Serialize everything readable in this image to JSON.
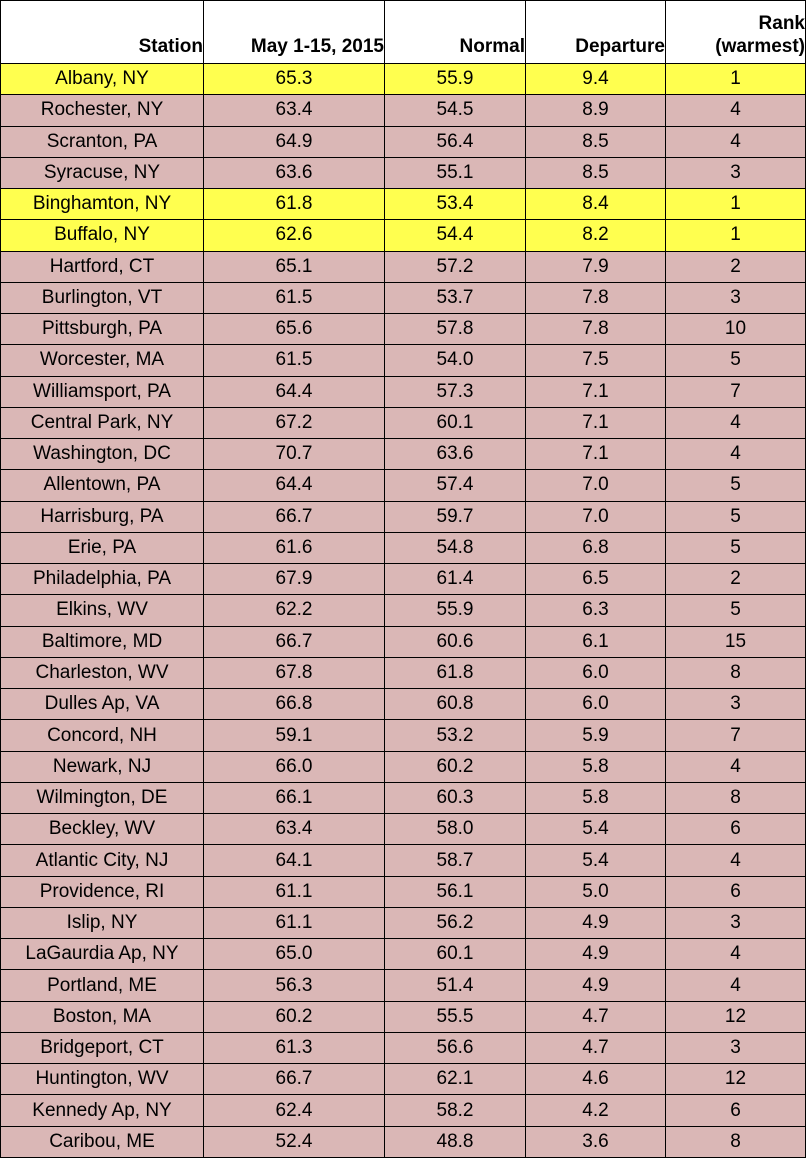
{
  "table": {
    "header": [
      "Station",
      "May 1-15, 2015",
      "Normal",
      "Departure",
      [
        "Rank",
        "(warmest)"
      ]
    ],
    "row_color": "#dab7b6",
    "highlight_color": "#ffff4f",
    "highlighted_rows": [
      0,
      4,
      5
    ],
    "rows": [
      [
        "Albany, NY",
        "65.3",
        "55.9",
        "9.4",
        "1"
      ],
      [
        "Rochester, NY",
        "63.4",
        "54.5",
        "8.9",
        "4"
      ],
      [
        "Scranton, PA",
        "64.9",
        "56.4",
        "8.5",
        "4"
      ],
      [
        "Syracuse, NY",
        "63.6",
        "55.1",
        "8.5",
        "3"
      ],
      [
        "Binghamton, NY",
        "61.8",
        "53.4",
        "8.4",
        "1"
      ],
      [
        "Buffalo, NY",
        "62.6",
        "54.4",
        "8.2",
        "1"
      ],
      [
        "Hartford, CT",
        "65.1",
        "57.2",
        "7.9",
        "2"
      ],
      [
        "Burlington, VT",
        "61.5",
        "53.7",
        "7.8",
        "3"
      ],
      [
        "Pittsburgh, PA",
        "65.6",
        "57.8",
        "7.8",
        "10"
      ],
      [
        "Worcester, MA",
        "61.5",
        "54.0",
        "7.5",
        "5"
      ],
      [
        "Williamsport, PA",
        "64.4",
        "57.3",
        "7.1",
        "7"
      ],
      [
        "Central Park, NY",
        "67.2",
        "60.1",
        "7.1",
        "4"
      ],
      [
        "Washington, DC",
        "70.7",
        "63.6",
        "7.1",
        "4"
      ],
      [
        "Allentown, PA",
        "64.4",
        "57.4",
        "7.0",
        "5"
      ],
      [
        "Harrisburg, PA",
        "66.7",
        "59.7",
        "7.0",
        "5"
      ],
      [
        "Erie, PA",
        "61.6",
        "54.8",
        "6.8",
        "5"
      ],
      [
        "Philadelphia, PA",
        "67.9",
        "61.4",
        "6.5",
        "2"
      ],
      [
        "Elkins, WV",
        "62.2",
        "55.9",
        "6.3",
        "5"
      ],
      [
        "Baltimore, MD",
        "66.7",
        "60.6",
        "6.1",
        "15"
      ],
      [
        "Charleston, WV",
        "67.8",
        "61.8",
        "6.0",
        "8"
      ],
      [
        "Dulles Ap, VA",
        "66.8",
        "60.8",
        "6.0",
        "3"
      ],
      [
        "Concord, NH",
        "59.1",
        "53.2",
        "5.9",
        "7"
      ],
      [
        "Newark, NJ",
        "66.0",
        "60.2",
        "5.8",
        "4"
      ],
      [
        "Wilmington, DE",
        "66.1",
        "60.3",
        "5.8",
        "8"
      ],
      [
        "Beckley, WV",
        "63.4",
        "58.0",
        "5.4",
        "6"
      ],
      [
        "Atlantic City, NJ",
        "64.1",
        "58.7",
        "5.4",
        "4"
      ],
      [
        "Providence, RI",
        "61.1",
        "56.1",
        "5.0",
        "6"
      ],
      [
        "Islip, NY",
        "61.1",
        "56.2",
        "4.9",
        "3"
      ],
      [
        "LaGaurdia Ap, NY",
        "65.0",
        "60.1",
        "4.9",
        "4"
      ],
      [
        "Portland, ME",
        "56.3",
        "51.4",
        "4.9",
        "4"
      ],
      [
        "Boston, MA",
        "60.2",
        "55.5",
        "4.7",
        "12"
      ],
      [
        "Bridgeport, CT",
        "61.3",
        "56.6",
        "4.7",
        "3"
      ],
      [
        "Huntington, WV",
        "66.7",
        "62.1",
        "4.6",
        "12"
      ],
      [
        "Kennedy Ap, NY",
        "62.4",
        "58.2",
        "4.2",
        "6"
      ],
      [
        "Caribou, ME",
        "52.4",
        "48.8",
        "3.6",
        "8"
      ]
    ]
  }
}
